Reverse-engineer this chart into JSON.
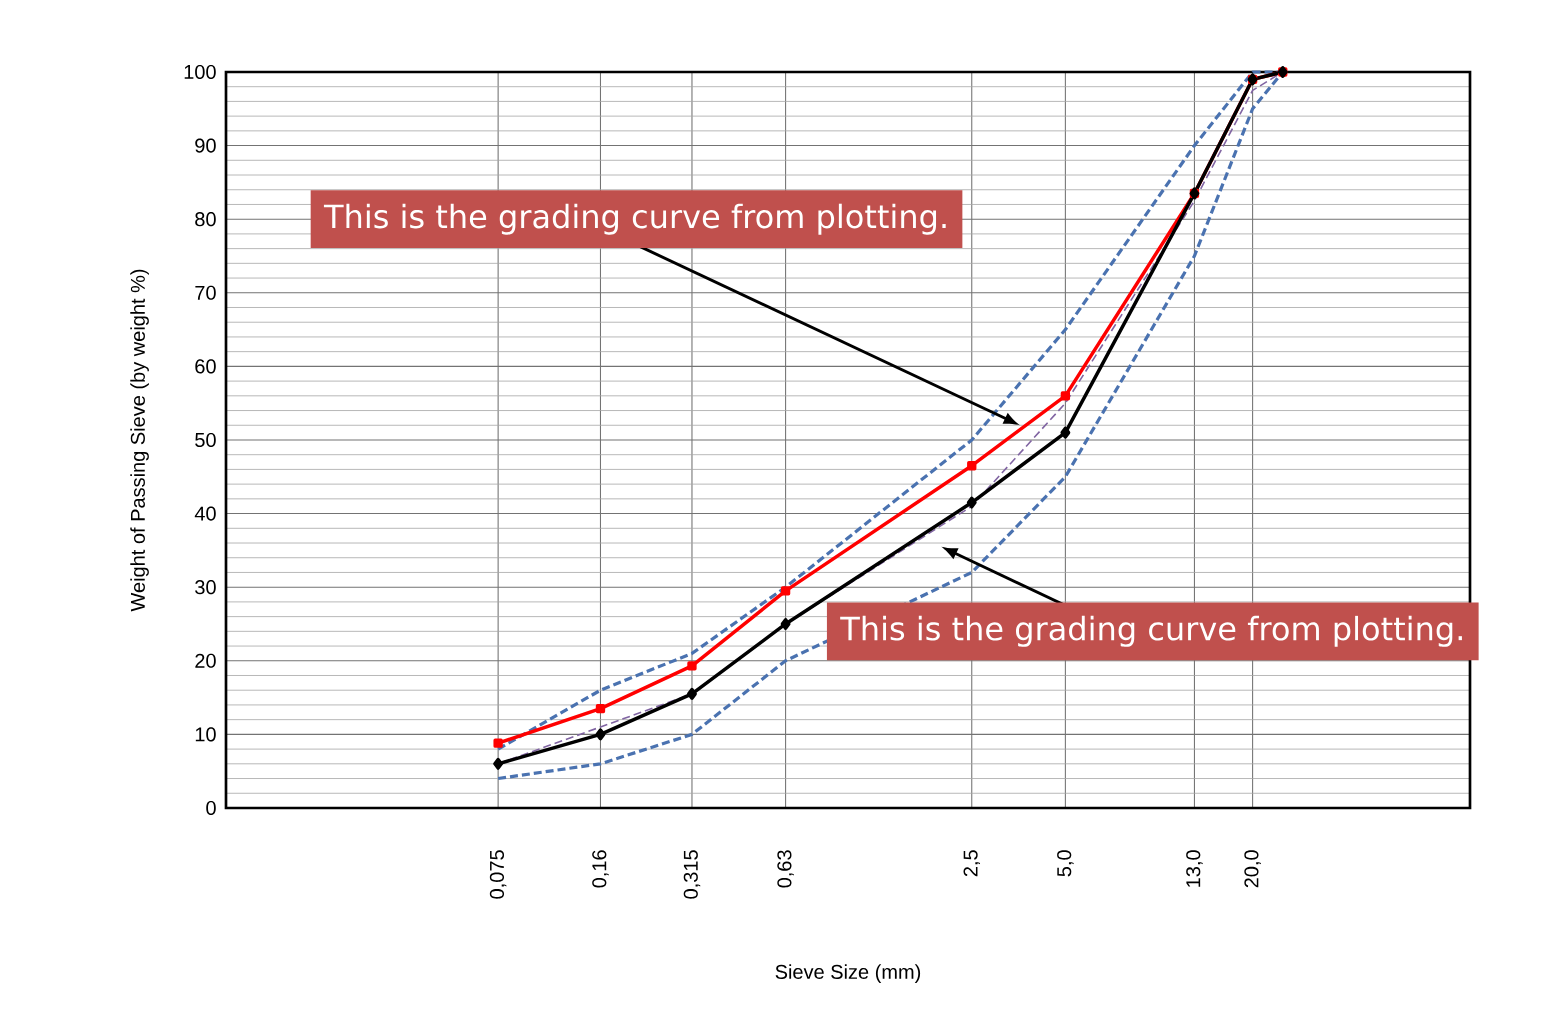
{
  "chart_data": {
    "type": "line",
    "xlabel": "Sieve Size (mm)",
    "ylabel": "Weight of Passing Sieve (by weight %)",
    "log": "x",
    "xlim": [
      0.01,
      100
    ],
    "ylim": [
      0,
      100
    ],
    "xticks": [
      {
        "value": 0.075,
        "label": "0,075"
      },
      {
        "value": 0.16,
        "label": "0,16"
      },
      {
        "value": 0.315,
        "label": "0,315"
      },
      {
        "value": 0.63,
        "label": "0,63"
      },
      {
        "value": 2.5,
        "label": "2,5"
      },
      {
        "value": 5.0,
        "label": "5,0"
      },
      {
        "value": 13.0,
        "label": "13,0"
      },
      {
        "value": 20.0,
        "label": "20,0"
      }
    ],
    "yticks": [
      0,
      10,
      20,
      30,
      40,
      50,
      60,
      70,
      80,
      90,
      100
    ],
    "grid": true,
    "x": [
      0.075,
      0.16,
      0.315,
      0.63,
      2.5,
      5.0,
      13.0,
      20.0,
      25.0
    ],
    "series": [
      {
        "color": "#4a72b0",
        "line_style": "dashed",
        "marker": "none",
        "values": [
          8,
          16,
          21,
          30,
          50,
          65,
          90,
          100,
          100
        ]
      },
      {
        "color": "#4a72b0",
        "line_style": "dashed",
        "marker": "none",
        "values": [
          4,
          6,
          10,
          20,
          32,
          45,
          75,
          95,
          100
        ]
      },
      {
        "color": "#8064a2",
        "line_style": "dashed",
        "marker": "none",
        "values": [
          6,
          11,
          15.5,
          25,
          41,
          55,
          82.5,
          97.5,
          100
        ]
      },
      {
        "color": "#ff0000",
        "line_style": "solid",
        "marker": "square",
        "values": [
          8.8,
          13.5,
          19.3,
          29.5,
          46.5,
          56,
          83.5,
          99,
          100
        ]
      },
      {
        "color": "#000000",
        "line_style": "solid",
        "marker": "diamond",
        "values": [
          6,
          10,
          15.5,
          25,
          41.5,
          51,
          83.5,
          99,
          100
        ]
      }
    ],
    "annotations": [
      {
        "text": "This is the grading curve from plotting.",
        "x": 3.57,
        "y": 52
      },
      "This is the grading curve from plotting."
    ]
  }
}
